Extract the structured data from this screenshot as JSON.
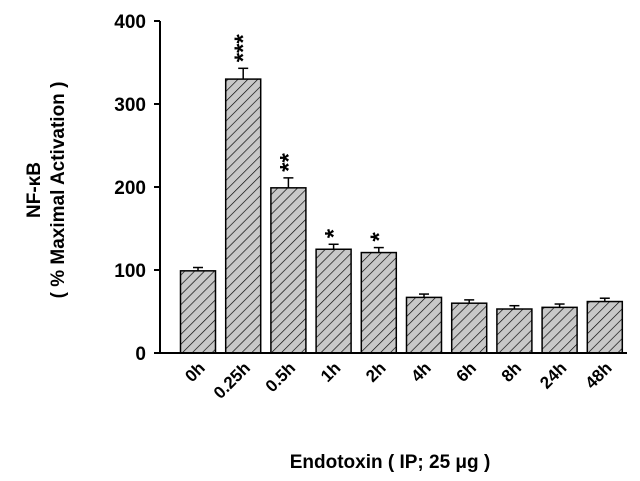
{
  "chart_data": {
    "type": "bar",
    "categories": [
      "0h",
      "0.25h",
      "0.5h",
      "1h",
      "2h",
      "4h",
      "6h",
      "8h",
      "24h",
      "48h"
    ],
    "values": [
      99,
      330,
      199,
      125,
      121,
      67,
      60,
      53,
      55,
      62
    ],
    "errors": [
      4,
      13,
      12,
      6,
      6,
      4,
      4,
      4,
      4,
      4
    ],
    "significance": [
      "",
      "***",
      "**",
      "*",
      "*",
      "",
      "",
      "",
      "",
      ""
    ],
    "ylim": [
      0,
      400
    ],
    "yticks": [
      0,
      100,
      200,
      300,
      400
    ],
    "ylabel_line1": "NF-κB",
    "ylabel_line2": "( % Maximal Activation )",
    "xlabel": "Endotoxin ( IP; 25 μg )",
    "grid": false,
    "bar_fill": "#c8c8c8",
    "hatch_color": "#000000"
  }
}
